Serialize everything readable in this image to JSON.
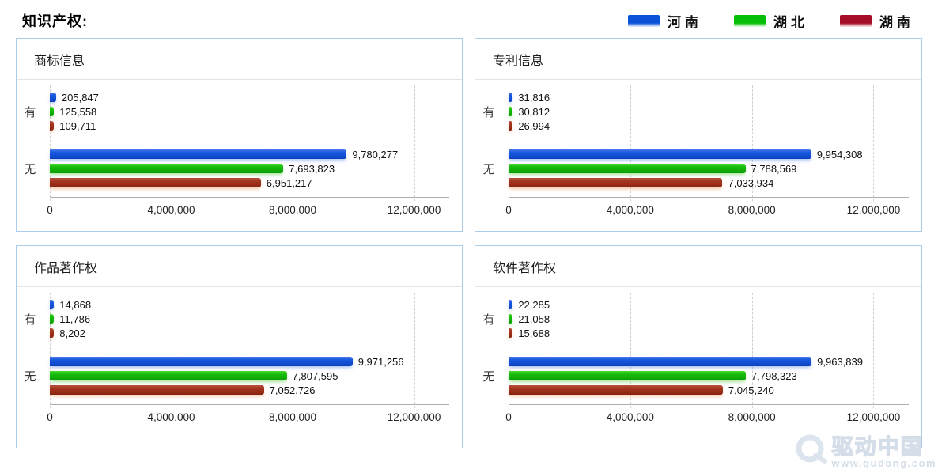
{
  "page": {
    "title": "知识产权:"
  },
  "legend": {
    "items": [
      {
        "label": "河南",
        "color": "#0B51D8"
      },
      {
        "label": "湖北",
        "color": "#05BE05"
      },
      {
        "label": "湖南",
        "color": "#A40E28"
      }
    ]
  },
  "watermark": {
    "name": "驱动中国",
    "url": "www.qudong.com"
  },
  "chart_data": [
    {
      "type": "bar",
      "orientation": "horizontal",
      "title": "商标信息",
      "categories": [
        "有",
        "无"
      ],
      "series": [
        {
          "name": "河南",
          "color": "#1653D4",
          "values": [
            205847,
            9780277
          ],
          "labels": [
            "205,847",
            "9,780,277"
          ]
        },
        {
          "name": "湖北",
          "color": "#17B40C",
          "values": [
            125558,
            7693823
          ],
          "labels": [
            "125,558",
            "7,693,823"
          ]
        },
        {
          "name": "湖南",
          "color": "#A23420",
          "values": [
            109711,
            6951217
          ],
          "labels": [
            "109,711",
            "6,951,217"
          ]
        }
      ],
      "xlim": [
        0,
        12000000
      ],
      "x_ticks": [
        "0",
        "4,000,000",
        "8,000,000",
        "12,000,000"
      ],
      "grid": "vertical-dashed",
      "value_labels": "outside-end",
      "legend_position": "top-right-of-page"
    },
    {
      "type": "bar",
      "orientation": "horizontal",
      "title": "专利信息",
      "categories": [
        "有",
        "无"
      ],
      "series": [
        {
          "name": "河南",
          "color": "#1653D4",
          "values": [
            31816,
            9954308
          ],
          "labels": [
            "31,816",
            "9,954,308"
          ]
        },
        {
          "name": "湖北",
          "color": "#17B40C",
          "values": [
            30812,
            7788569
          ],
          "labels": [
            "30,812",
            "7,788,569"
          ]
        },
        {
          "name": "湖南",
          "color": "#A23420",
          "values": [
            26994,
            7033934
          ],
          "labels": [
            "26,994",
            "7,033,934"
          ]
        }
      ],
      "xlim": [
        0,
        12000000
      ],
      "x_ticks": [
        "0",
        "4,000,000",
        "8,000,000",
        "12,000,000"
      ],
      "grid": "vertical-dashed",
      "value_labels": "outside-end",
      "legend_position": "top-right-of-page"
    },
    {
      "type": "bar",
      "orientation": "horizontal",
      "title": "作品著作权",
      "categories": [
        "有",
        "无"
      ],
      "series": [
        {
          "name": "河南",
          "color": "#1653D4",
          "values": [
            14868,
            9971256
          ],
          "labels": [
            "14,868",
            "9,971,256"
          ]
        },
        {
          "name": "湖北",
          "color": "#17B40C",
          "values": [
            11786,
            7807595
          ],
          "labels": [
            "11,786",
            "7,807,595"
          ]
        },
        {
          "name": "湖南",
          "color": "#A23420",
          "values": [
            8202,
            7052726
          ],
          "labels": [
            "8,202",
            "7,052,726"
          ]
        }
      ],
      "xlim": [
        0,
        12000000
      ],
      "x_ticks": [
        "0",
        "4,000,000",
        "8,000,000",
        "12,000,000"
      ],
      "grid": "vertical-dashed",
      "value_labels": "outside-end",
      "legend_position": "top-right-of-page"
    },
    {
      "type": "bar",
      "orientation": "horizontal",
      "title": "软件著作权",
      "categories": [
        "有",
        "无"
      ],
      "series": [
        {
          "name": "河南",
          "color": "#1653D4",
          "values": [
            22285,
            9963839
          ],
          "labels": [
            "22,285",
            "9,963,839"
          ]
        },
        {
          "name": "湖北",
          "color": "#17B40C",
          "values": [
            21058,
            7798323
          ],
          "labels": [
            "21,058",
            "7,798,323"
          ]
        },
        {
          "name": "湖南",
          "color": "#A23420",
          "values": [
            15688,
            7045240
          ],
          "labels": [
            "15,688",
            "7,045,240"
          ]
        }
      ],
      "xlim": [
        0,
        12000000
      ],
      "x_ticks": [
        "0",
        "4,000,000",
        "8,000,000",
        "12,000,000"
      ],
      "grid": "vertical-dashed",
      "value_labels": "outside-end",
      "legend_position": "top-right-of-page"
    }
  ]
}
